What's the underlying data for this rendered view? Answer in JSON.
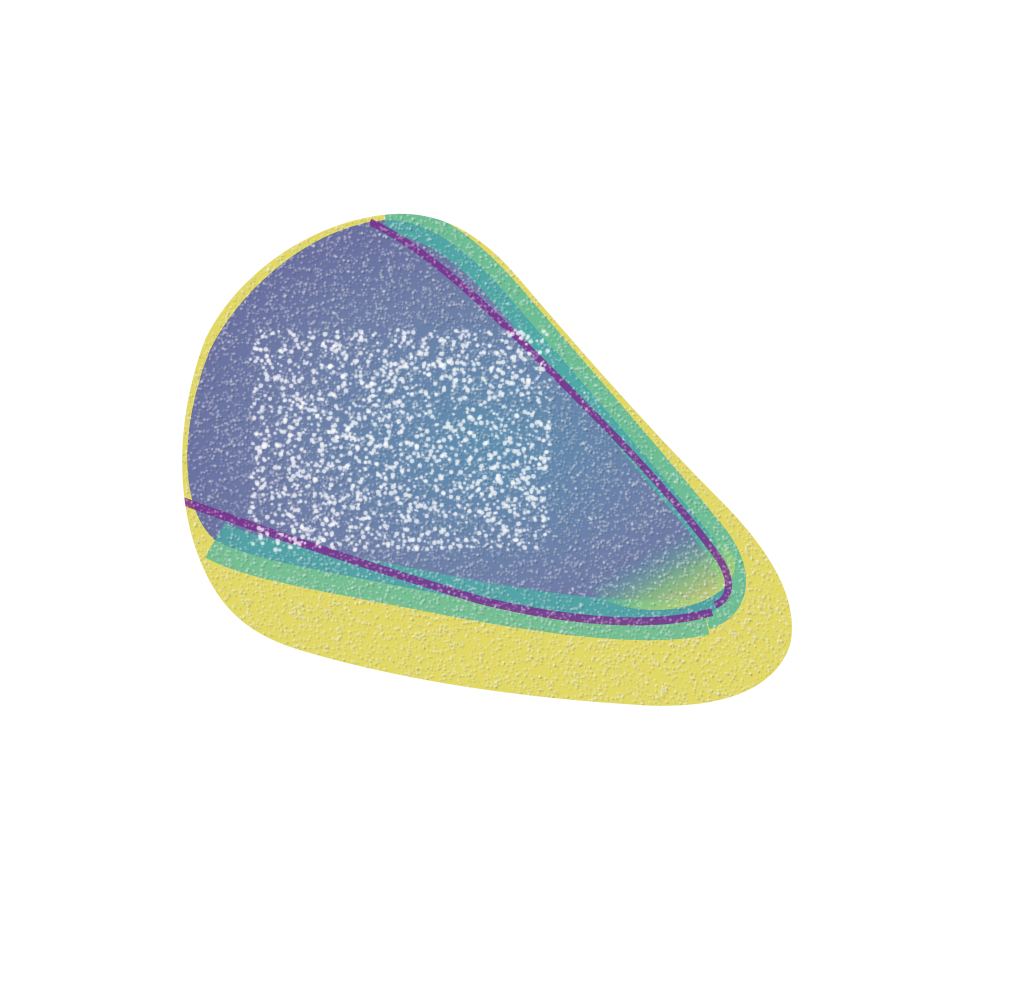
{
  "scene": {
    "background_color": "#ffffff",
    "object": "point-cloud-surface",
    "colormap": "viridis",
    "palette": {
      "purple": "#7b2f8e",
      "slate_blue": "#6f7fa8",
      "steel_blue": "#5f8fb0",
      "teal": "#47b5a6",
      "green": "#8fd07a",
      "yellow": "#e6dd6a",
      "rim_yellow": "#d9cf5a"
    }
  }
}
